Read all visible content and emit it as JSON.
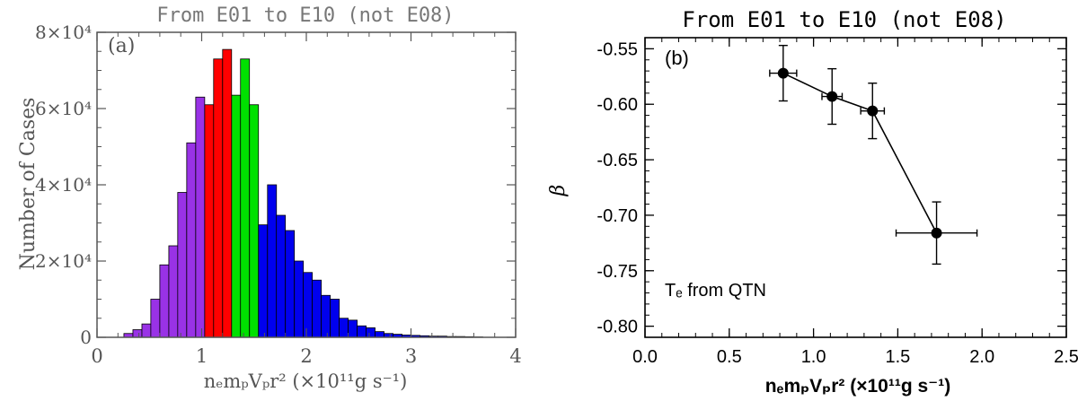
{
  "chart_data": [
    {
      "type": "bar",
      "panel_label": "(a)",
      "title": "From E01 to E10 (not E08)",
      "xlabel": "nₑmₚVₚr² (×10¹¹g s⁻¹)",
      "ylabel": "Number of Cases",
      "xlim": [
        0,
        4
      ],
      "ylim": [
        0,
        80000
      ],
      "x_ticks": [
        "0",
        "1",
        "2",
        "3",
        "4"
      ],
      "y_ticks": [
        "0",
        "2×10⁴",
        "4×10⁴",
        "6×10⁴",
        "8×10⁴"
      ],
      "bin_width": 0.0857,
      "bin_starts": [
        0.257,
        0.343,
        0.429,
        0.514,
        0.6,
        0.686,
        0.771,
        0.857,
        0.943,
        1.029,
        1.114,
        1.2,
        1.286,
        1.371,
        1.457,
        1.543,
        1.629,
        1.714,
        1.8,
        1.886,
        1.971,
        2.057,
        2.143,
        2.229,
        2.314,
        2.4,
        2.486,
        2.571,
        2.657,
        2.743,
        2.829,
        2.914,
        3.0,
        3.086,
        3.171,
        3.257,
        3.343,
        3.429,
        3.514,
        3.6
      ],
      "values": [
        1000,
        2000,
        3500,
        10000,
        19000,
        24000,
        38000,
        51000,
        63000,
        61000,
        73000,
        75500,
        63500,
        73000,
        61000,
        29500,
        40000,
        32000,
        28000,
        20000,
        17000,
        15000,
        11000,
        10000,
        5000,
        4500,
        3000,
        2500,
        1500,
        1000,
        800,
        600,
        500,
        400,
        300,
        300,
        200,
        200,
        150,
        100
      ],
      "colors": [
        "#9932e6",
        "#9932e6",
        "#9932e6",
        "#9932e6",
        "#9932e6",
        "#9932e6",
        "#9932e6",
        "#9932e6",
        "#9932e6",
        "#ff0000",
        "#ff0000",
        "#ff0000",
        "#00e000",
        "#00e000",
        "#00e000",
        "#0000ee",
        "#0000ee",
        "#0000ee",
        "#0000ee",
        "#0000ee",
        "#0000ee",
        "#0000ee",
        "#0000ee",
        "#0000ee",
        "#0000ee",
        "#0000ee",
        "#0000ee",
        "#0000ee",
        "#0000ee",
        "#0000ee",
        "#0000ee",
        "#0000ee",
        "#0000ee",
        "#0000ee",
        "#0000ee",
        "#0000ee",
        "#0000ee",
        "#0000ee",
        "#0000ee",
        "#0000ee"
      ]
    },
    {
      "type": "scatter",
      "panel_label": "(b)",
      "title": "From E01 to E10 (not E08)",
      "xlabel": "nₑmₚVₚr² (×10¹¹g s⁻¹)",
      "ylabel": "β",
      "annotation": "Tₑ from QTN",
      "xlim": [
        0,
        2.5
      ],
      "ylim": [
        -0.81,
        -0.54
      ],
      "x_ticks": [
        "0.0",
        "0.5",
        "1.0",
        "1.5",
        "2.0",
        "2.5"
      ],
      "y_ticks": [
        "-0.80",
        "-0.75",
        "-0.70",
        "-0.65",
        "-0.60",
        "-0.55"
      ],
      "connected": true,
      "points": [
        {
          "x": 0.82,
          "y": -0.572,
          "xerr": 0.08,
          "yerr": 0.025
        },
        {
          "x": 1.11,
          "y": -0.593,
          "xerr": 0.06,
          "yerr": 0.025
        },
        {
          "x": 1.35,
          "y": -0.606,
          "xerr": 0.07,
          "yerr": 0.025
        },
        {
          "x": 1.73,
          "y": -0.716,
          "xerr": 0.24,
          "yerr": 0.028
        }
      ]
    }
  ],
  "colors": {
    "axis_a": "#555555",
    "axis_b": "#000000",
    "bar_edge": "#000000"
  }
}
